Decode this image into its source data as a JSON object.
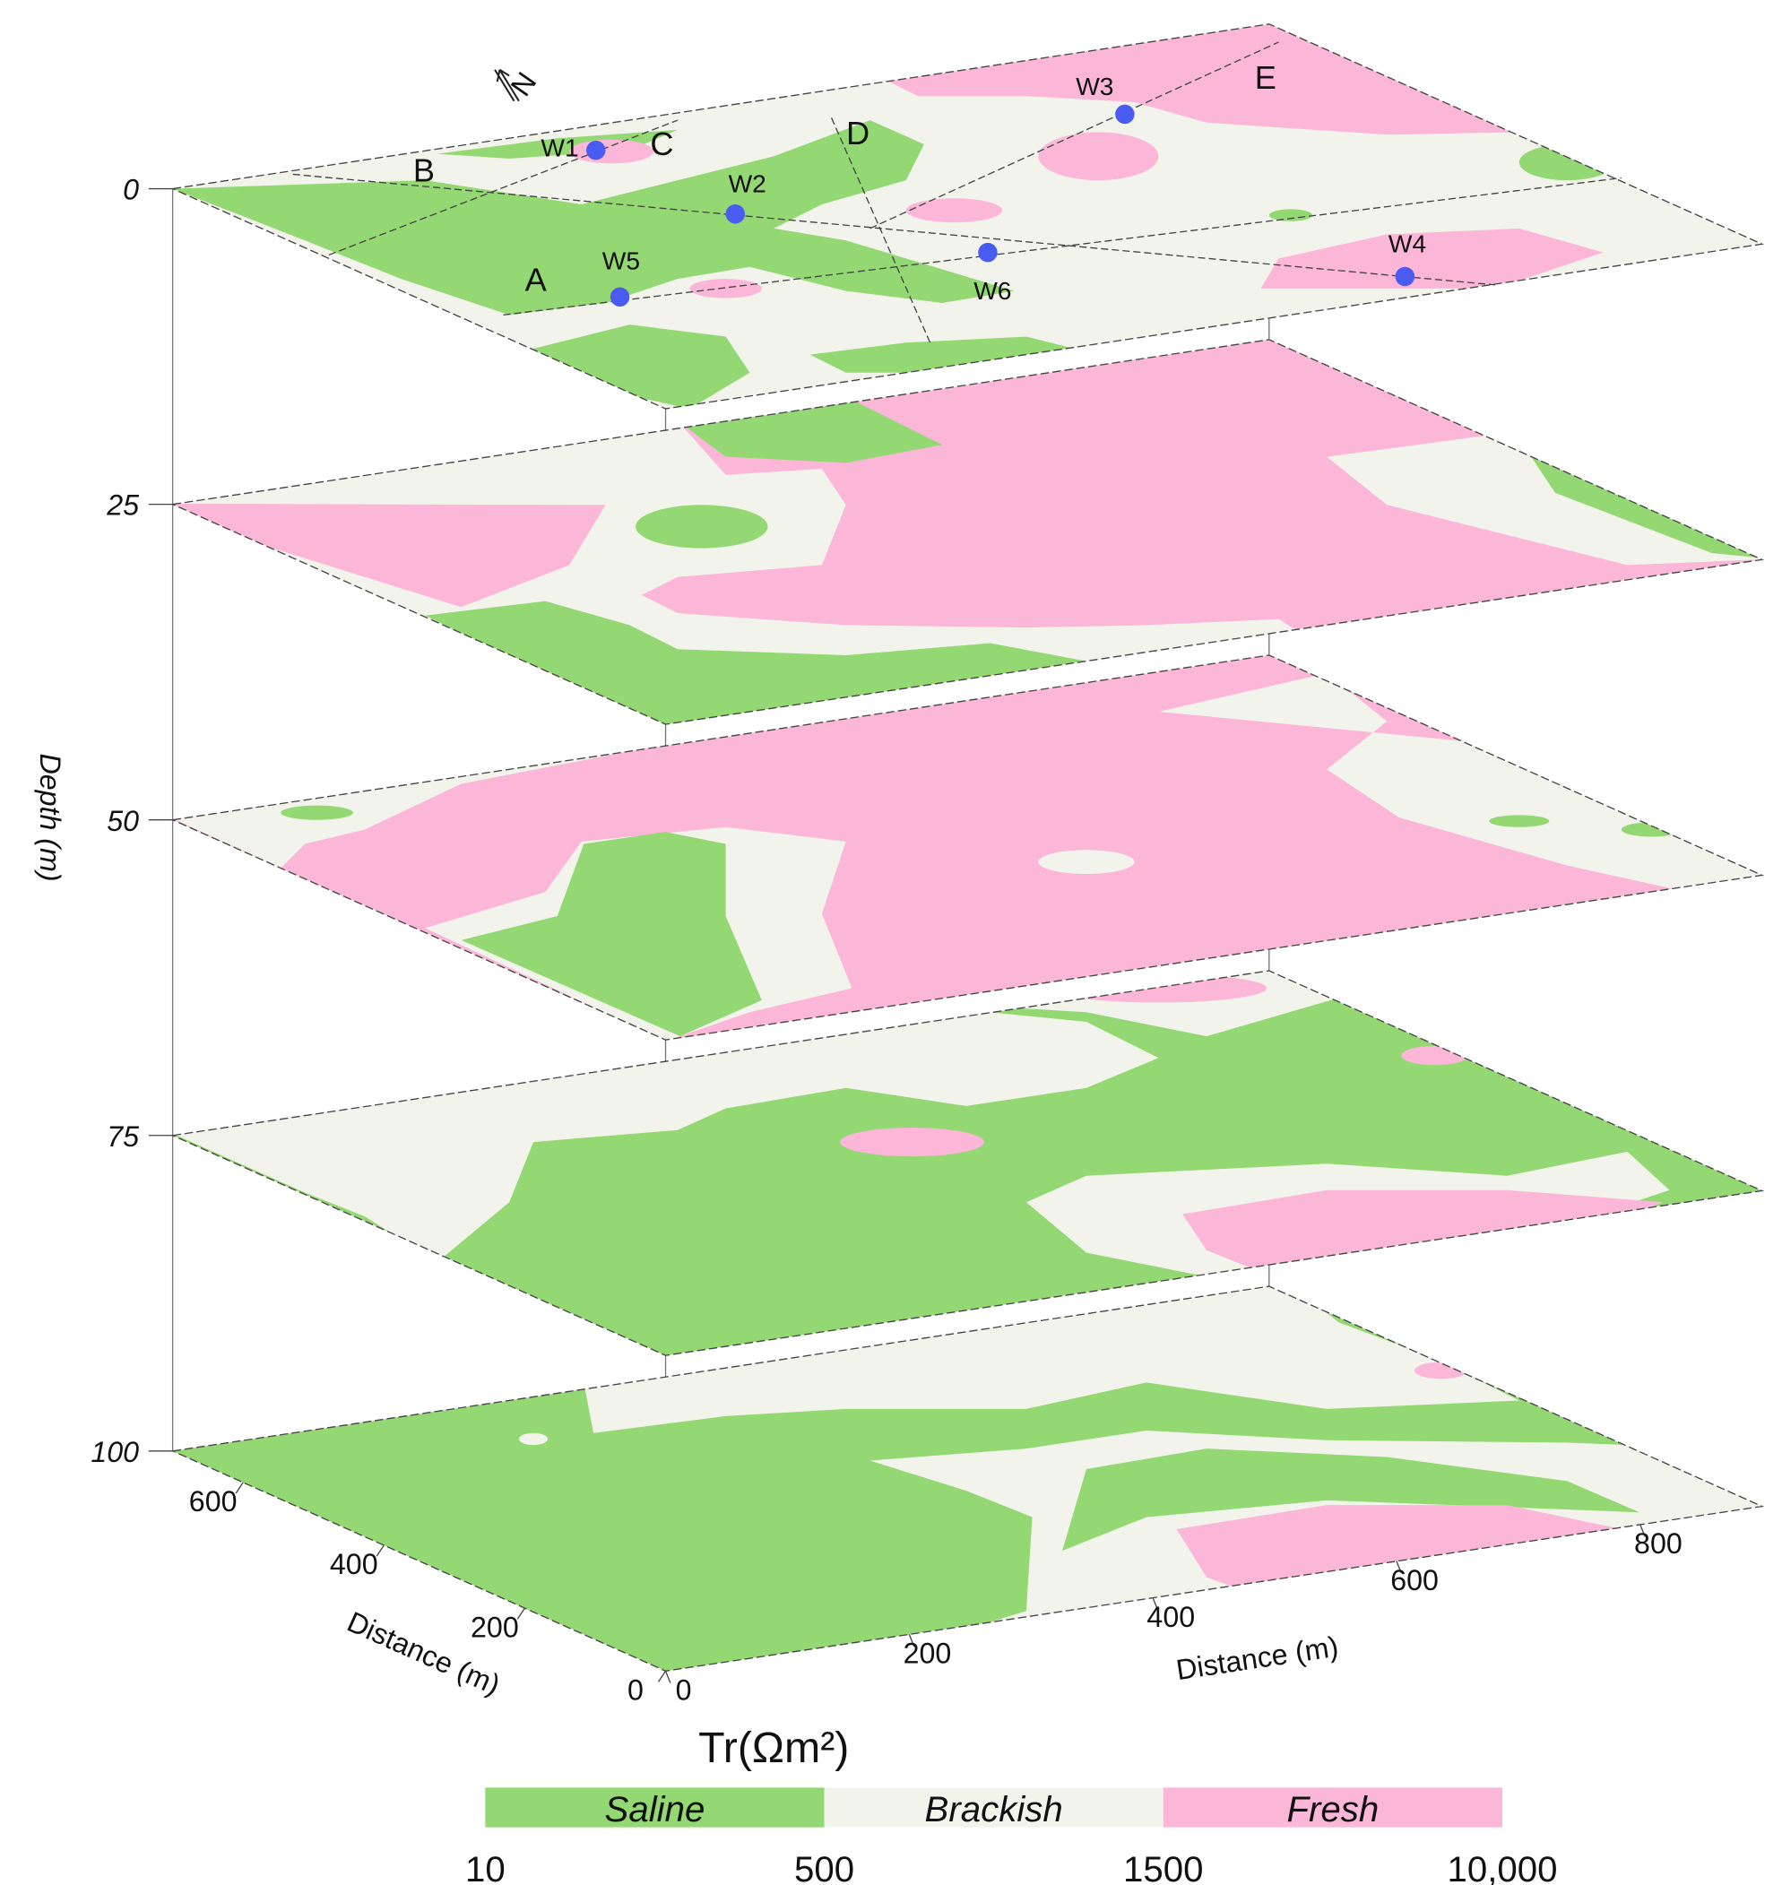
{
  "chart_data": {
    "type": "stacked-slices",
    "zlabel": "Depth (m)",
    "zlim": [
      0,
      100
    ],
    "zticks": [
      0,
      25,
      50,
      75,
      100
    ],
    "xlabel": "Distance (m)",
    "xlim": [
      0,
      900
    ],
    "xticks": [
      0,
      200,
      400,
      600,
      800
    ],
    "ylabel": "Distance (m)",
    "ylim": [
      0,
      700
    ],
    "yticks": [
      0,
      200,
      400,
      600
    ],
    "wells": [
      "W1",
      "W2",
      "W3",
      "W4",
      "W5",
      "W6"
    ],
    "profiles": [
      "A",
      "B",
      "C",
      "D",
      "E"
    ],
    "north": "N",
    "legend": {
      "title": "Tr(Ωm²)",
      "classes": [
        {
          "name": "Saline",
          "color": "#93d872"
        },
        {
          "name": "Brackish",
          "color": "#f2f4ec"
        },
        {
          "name": "Fresh",
          "color": "#fbb6d8"
        }
      ],
      "bounds": [
        10,
        500,
        1500,
        {
          "value": 10000,
          "label": "10,000"
        }
      ]
    }
  }
}
